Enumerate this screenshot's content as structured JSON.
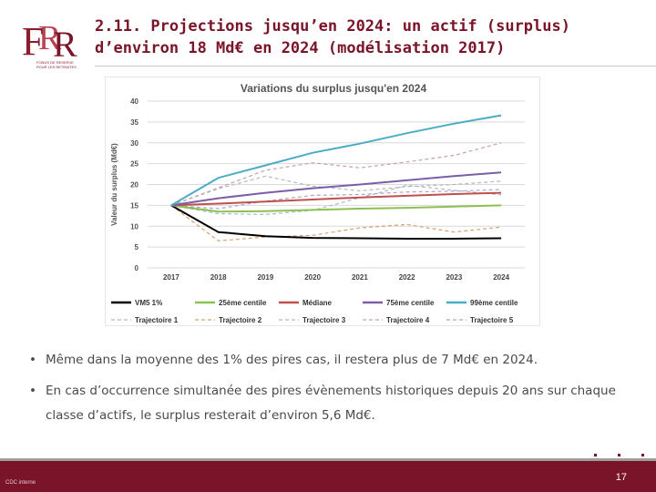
{
  "header": {
    "title_line1": "2.11. Projections jusqu’en 2024: un actif (surplus)",
    "title_line2": "d’environ 18 Md€ en 2024 (modélisation 2017)",
    "logo_text": [
      "FONDS DE RESERVE",
      "POUR LES RETRAITES"
    ]
  },
  "bullets": [
    "Même dans la moyenne des 1% des pires cas, il restera plus de 7 Md€ en 2024.",
    "En cas d’occurrence simultanée des pires évènements historiques depuis 20 ans sur chaque classe d’actifs, le surplus resterait d’environ 5,6 Md€."
  ],
  "bullet_marker": "•",
  "footer": {
    "left_text": "CDC interne",
    "page_number": "17"
  },
  "colors": {
    "brand": "#7a1428",
    "footer_bar": "#7a1428"
  },
  "chart_data": {
    "type": "line",
    "title": "Variations du surplus jusqu'en 2024",
    "xlabel": "",
    "ylabel": "Valeur du surplus (Md€)",
    "categories": [
      "2017",
      "2018",
      "2019",
      "2020",
      "2021",
      "2022",
      "2023",
      "2024"
    ],
    "ylim": [
      0,
      40
    ],
    "yticks": [
      0,
      5,
      10,
      15,
      20,
      25,
      30,
      35,
      40
    ],
    "grid": true,
    "legend_position": "bottom",
    "series": [
      {
        "name": "VM5 1%",
        "color": "#000000",
        "dash": "solid",
        "values": [
          15,
          8.6,
          7.6,
          7.2,
          7.1,
          7.0,
          7.0,
          7.1
        ]
      },
      {
        "name": "25ème centile",
        "color": "#8cc152",
        "dash": "solid",
        "values": [
          15,
          13.5,
          13.6,
          13.9,
          14.2,
          14.4,
          14.7,
          15.0
        ]
      },
      {
        "name": "Médiane",
        "color": "#c0504d",
        "dash": "solid",
        "values": [
          15,
          15.4,
          15.9,
          16.4,
          16.9,
          17.3,
          17.7,
          18.0
        ]
      },
      {
        "name": "75ème centile",
        "color": "#7b5ea7",
        "dash": "solid",
        "values": [
          15,
          16.7,
          18.0,
          19.1,
          20.0,
          21.0,
          22.0,
          22.9
        ]
      },
      {
        "name": "99ème centile",
        "color": "#4bacc6",
        "dash": "solid",
        "values": [
          15,
          21.6,
          24.6,
          27.6,
          29.8,
          32.3,
          34.6,
          36.6
        ]
      },
      {
        "name": "Trajectoire 1",
        "color": "#b8b8b8",
        "dash": "dashed",
        "values": [
          15,
          19.0,
          22.0,
          19.6,
          18.5,
          19.5,
          20.0,
          20.8
        ]
      },
      {
        "name": "Trajectoire 2",
        "color": "#d8a070",
        "dash": "dashed",
        "values": [
          15,
          6.5,
          7.4,
          7.8,
          9.6,
          10.4,
          8.6,
          9.8
        ]
      },
      {
        "name": "Trajectoire 3",
        "color": "#a7b9cc",
        "dash": "dashed",
        "values": [
          15,
          13.0,
          12.8,
          13.8,
          16.8,
          19.8,
          18.6,
          17.5
        ]
      },
      {
        "name": "Trajectoire 4",
        "color": "#c8a0b0",
        "dash": "dashed",
        "values": [
          15,
          19.2,
          23.4,
          25.2,
          24.0,
          25.4,
          27.0,
          30.0
        ]
      },
      {
        "name": "Trajectoire 5",
        "color": "#b0a0c8",
        "dash": "dashed",
        "values": [
          15,
          14.2,
          16.0,
          17.4,
          17.6,
          18.2,
          18.4,
          18.8
        ]
      }
    ]
  }
}
